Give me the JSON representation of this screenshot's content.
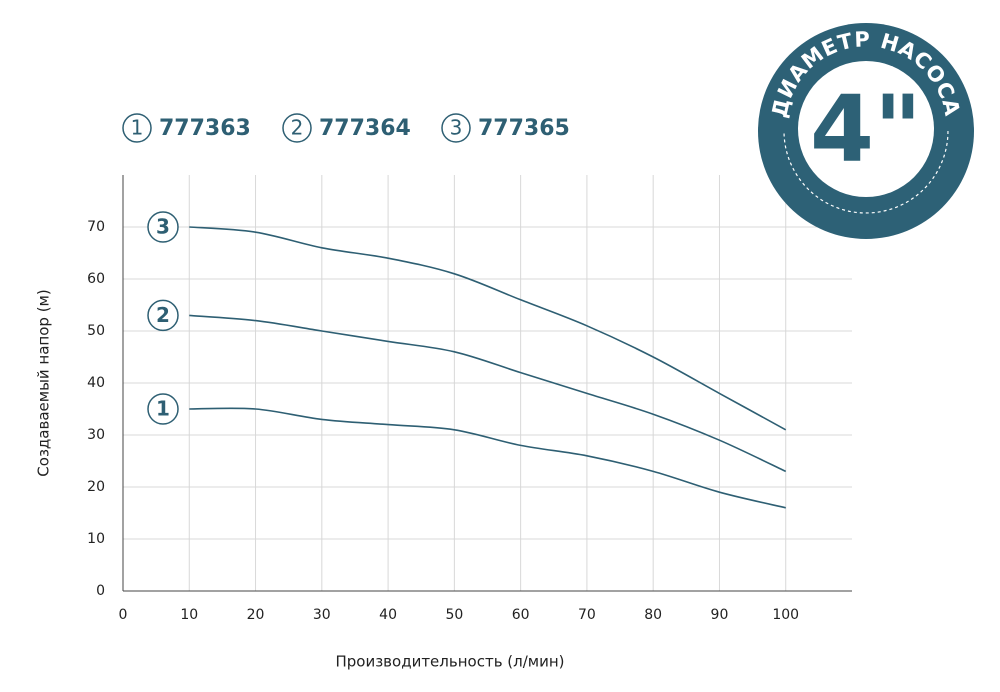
{
  "chart_data": {
    "type": "line",
    "x_label": "Производительность (л/мин)",
    "y_label": "Создаваемый напор (м)",
    "x": [
      10,
      20,
      30,
      40,
      50,
      60,
      70,
      80,
      90,
      100
    ],
    "series": [
      {
        "marker": "1",
        "name": "777363",
        "color": "#2e5f73",
        "values": [
          35,
          35,
          33,
          32,
          31,
          28,
          26,
          23,
          19,
          16
        ]
      },
      {
        "marker": "2",
        "name": "777364",
        "color": "#2e5f73",
        "values": [
          53,
          52,
          50,
          48,
          46,
          42,
          38,
          34,
          29,
          23
        ]
      },
      {
        "marker": "3",
        "name": "777365",
        "color": "#2e5f73",
        "values": [
          70,
          69,
          66,
          64,
          61,
          56,
          51,
          45,
          38,
          31
        ]
      }
    ],
    "xlim": [
      0,
      110
    ],
    "xticks": [
      0,
      10,
      20,
      30,
      40,
      50,
      60,
      70,
      80,
      90,
      100
    ],
    "ylim": [
      0,
      80
    ],
    "yticks": [
      0,
      10,
      20,
      30,
      40,
      50,
      60,
      70
    ],
    "grid": true,
    "badge": {
      "text": "ДИАМЕТР НАСОСА",
      "size": "4\"",
      "color": "#2d6176"
    }
  }
}
